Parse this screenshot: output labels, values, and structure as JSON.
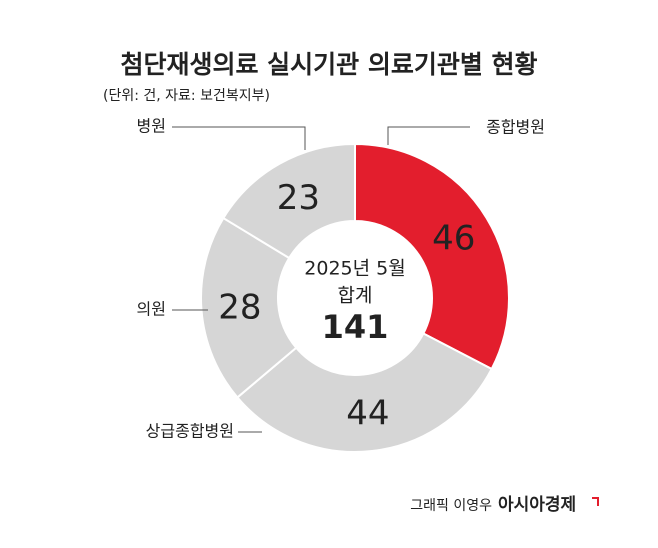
{
  "chart_data": {
    "type": "pie",
    "title": "첨단재생의료 실시기관 의료기관별 현황",
    "subtitle": "(단위: 건, 자료: 보건복지부)",
    "categories": [
      "종합병원",
      "상급종합병원",
      "의원",
      "병원"
    ],
    "values": [
      46,
      44,
      28,
      23
    ],
    "colors": [
      "#e31e2d",
      "#d6d6d6",
      "#d6d6d6",
      "#d6d6d6"
    ],
    "center_label": [
      "2025년 5월",
      "합계"
    ],
    "center_total": 141,
    "credit": "그래픽 이영우",
    "source_logo": "아시아경제"
  }
}
